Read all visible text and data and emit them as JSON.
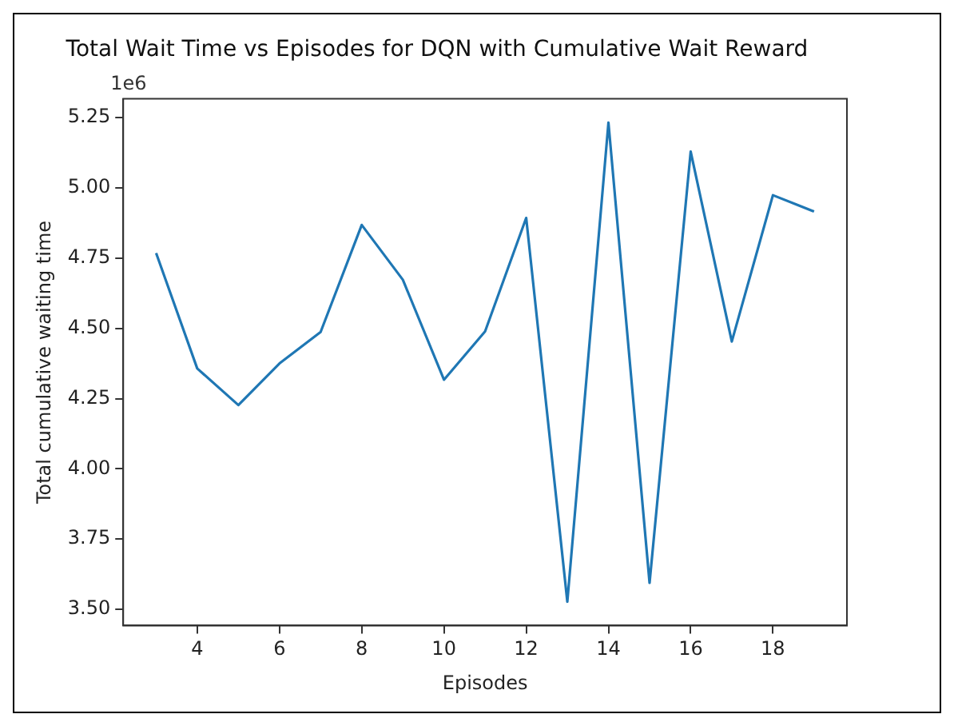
{
  "chart_data": {
    "type": "line",
    "title": "Total Wait Time vs Episodes for DQN with Cumulative Wait Reward",
    "xlabel": "Episodes",
    "ylabel": "Total cumulative waiting time",
    "annotations": [
      "1e6"
    ],
    "x": [
      3,
      4,
      5,
      6,
      7,
      8,
      9,
      10,
      11,
      12,
      13,
      14,
      15,
      16,
      17,
      18,
      19
    ],
    "series": [
      {
        "color": "#1f77b4",
        "values": [
          4.768,
          4.357,
          4.227,
          4.375,
          4.487,
          4.868,
          4.673,
          4.317,
          4.489,
          4.893,
          3.527,
          5.232,
          3.594,
          5.129,
          4.453,
          4.974,
          4.916
        ]
      }
    ],
    "xlim": [
      2.2,
      19.8
    ],
    "xticks": [
      4,
      6,
      8,
      10,
      12,
      14,
      16,
      18
    ],
    "ylim": [
      3.442,
      5.317
    ],
    "yticks": [
      {
        "value": 3.5,
        "label": "3.50"
      },
      3.75,
      {
        "value": 4,
        "label": "4.00"
      },
      4.25,
      {
        "value": 4.5,
        "label": "4.50"
      },
      4.75,
      {
        "value": 5,
        "label": "5.00"
      },
      5.25
    ],
    "grid": false,
    "legend": false,
    "marker": "none",
    "line_style": "solid"
  }
}
